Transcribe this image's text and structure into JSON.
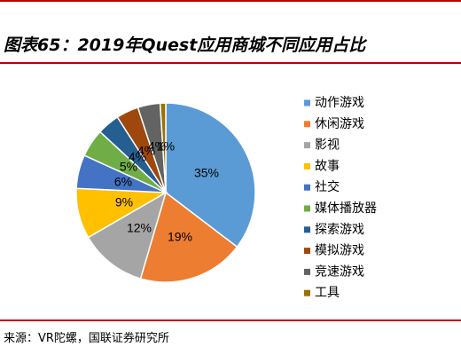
{
  "figure": {
    "title": "图表65：2019年Quest应用商城不同应用占比",
    "source": "来源：VR陀螺，国联证券研究所"
  },
  "chart_data": {
    "type": "pie",
    "title": "图表65：2019年Quest应用商城不同应用占比",
    "categories": [
      "动作游戏",
      "休闲游戏",
      "影视",
      "故事",
      "社交",
      "媒体播放器",
      "探索游戏",
      "模拟游戏",
      "竞速游戏",
      "工具"
    ],
    "values": [
      35,
      19,
      12,
      9,
      6,
      5,
      4,
      4,
      4,
      1
    ],
    "labels": [
      "35%",
      "19%",
      "12%",
      "9%",
      "6%",
      "5%",
      "4%",
      "4%",
      "4%",
      "1%"
    ],
    "colors": [
      "#5b9bd5",
      "#ed7d31",
      "#a5a5a5",
      "#ffc000",
      "#4472c4",
      "#70ad47",
      "#255e91",
      "#9e480e",
      "#636363",
      "#997300"
    ],
    "legend": "right"
  }
}
